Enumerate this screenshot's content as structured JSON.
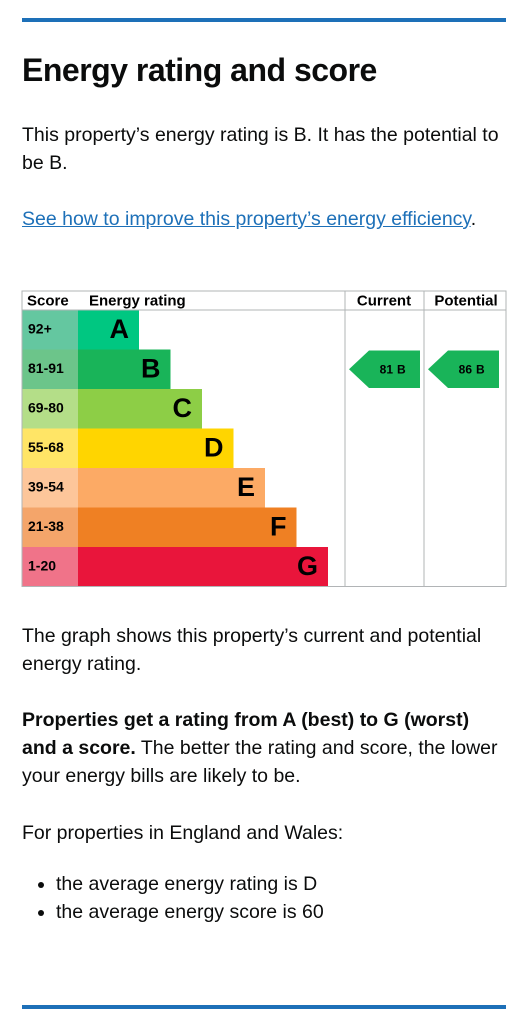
{
  "heading": "Energy rating and score",
  "intro": "This property’s energy rating is B. It has the potential to be B.",
  "link": {
    "text": "See how to improve this property’s energy efficiency",
    "after": "."
  },
  "graph": {
    "headers": [
      "Score",
      "Energy rating",
      "Current",
      "Potential"
    ],
    "bands": [
      {
        "score": "92+",
        "rating": "A",
        "color": "#00c781",
        "score_color": "#64c7a0"
      },
      {
        "score": "81-91",
        "rating": "B",
        "color": "#19b459",
        "score_color": "#6cc58a"
      },
      {
        "score": "69-80",
        "rating": "C",
        "color": "#8dce46",
        "score_color": "#b4de88"
      },
      {
        "score": "55-68",
        "rating": "D",
        "color": "#ffd500",
        "score_color": "#ffe566"
      },
      {
        "score": "39-54",
        "rating": "E",
        "color": "#fcaa65",
        "score_color": "#fdc69a"
      },
      {
        "score": "21-38",
        "rating": "F",
        "color": "#ef8023",
        "score_color": "#f4a56a"
      },
      {
        "score": "1-20",
        "rating": "G",
        "color": "#e9153b",
        "score_color": "#f07389"
      }
    ],
    "current": {
      "score": 81,
      "rating": "B"
    },
    "potential": {
      "score": 86,
      "rating": "B"
    }
  },
  "graph_note": "The graph shows this property’s current and potential energy rating.",
  "explain": {
    "bold": "Properties get a rating from A (best) to G (worst) and a score.",
    "text": " The better the rating and score, the lower your energy bills are likely to be."
  },
  "region_intro": "For properties in England and Wales:",
  "bullets": [
    "the average energy rating is D",
    "the average energy score is 60"
  ]
}
